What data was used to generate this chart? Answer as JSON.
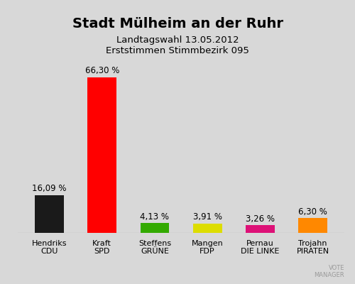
{
  "title": "Stadt Mülheim an der Ruhr",
  "subtitle1": "Landtagswahl 13.05.2012",
  "subtitle2": "Erststimmen Stimmbezirk 095",
  "categories": [
    "Hendriks\nCDU",
    "Kraft\nSPD",
    "Steffens\nGRÜNE",
    "Mangen\nFDP",
    "Pernau\nDIE LINKE",
    "Trojahn\nPIRATEN"
  ],
  "values": [
    16.09,
    66.3,
    4.13,
    3.91,
    3.26,
    6.3
  ],
  "labels": [
    "16,09 %",
    "66,30 %",
    "4,13 %",
    "3,91 %",
    "3,26 %",
    "6,30 %"
  ],
  "colors": [
    "#1a1a1a",
    "#ff0000",
    "#33aa00",
    "#dddd00",
    "#dd1177",
    "#ff8800"
  ],
  "background_color": "#d8d8d8",
  "ylim": [
    0,
    75
  ]
}
